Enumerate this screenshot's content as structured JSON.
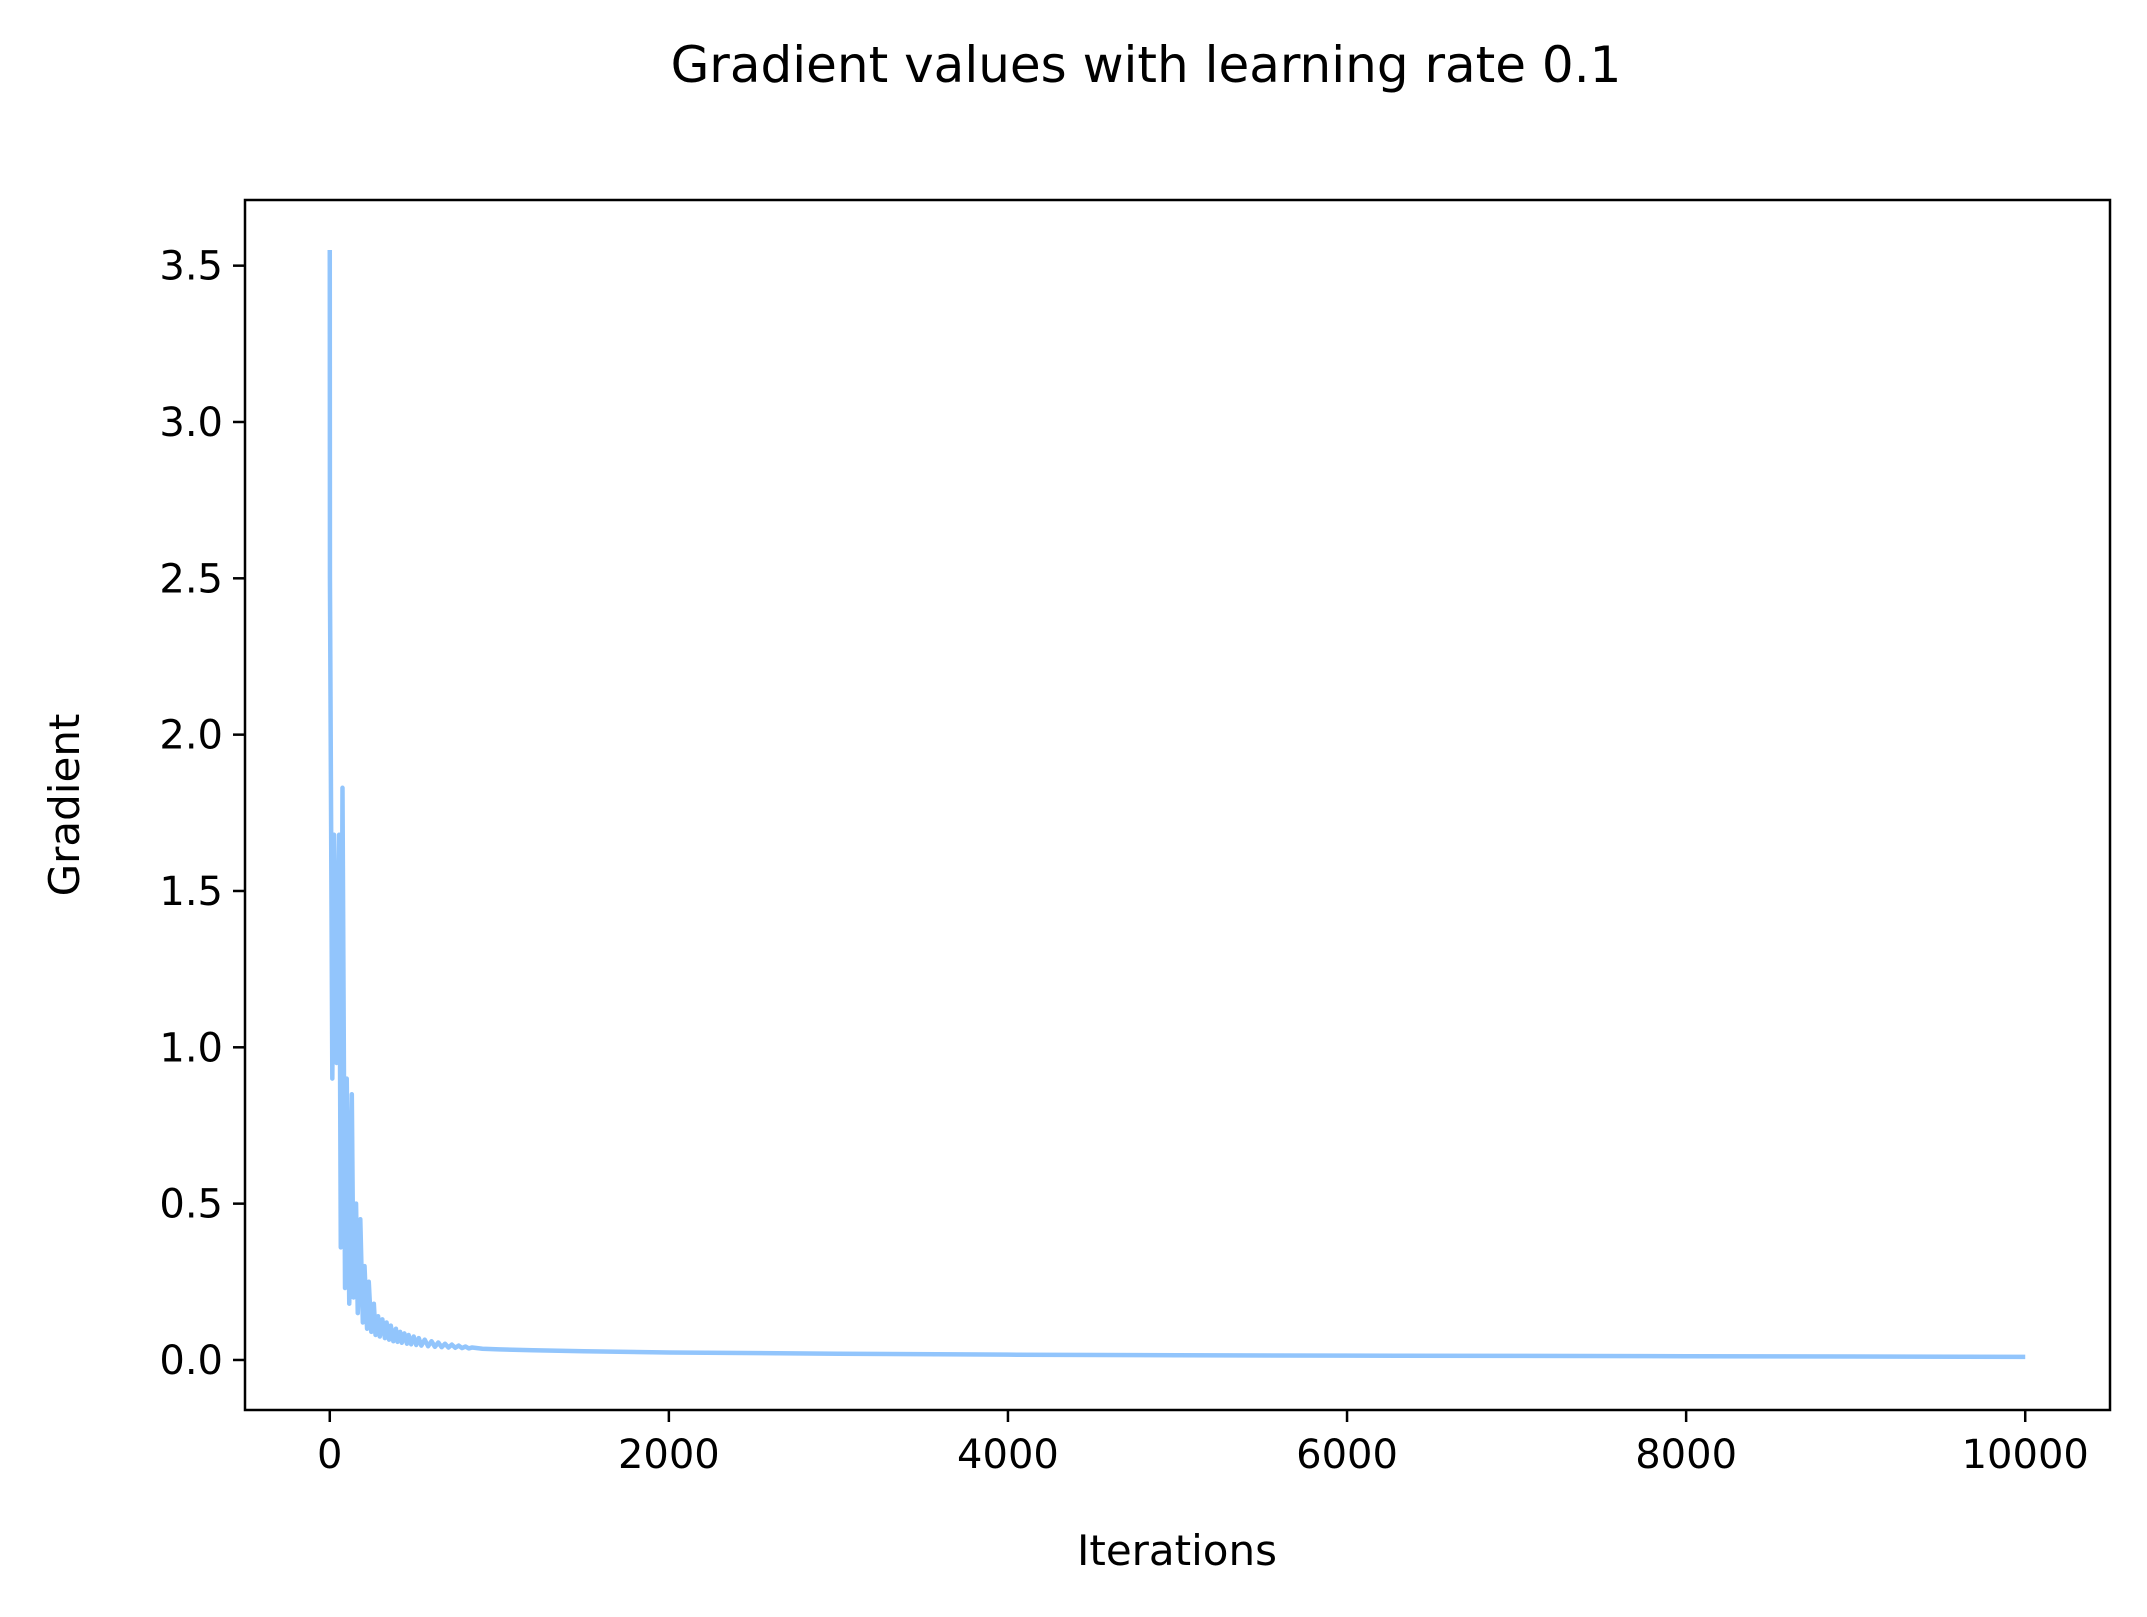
{
  "chart_data": {
    "type": "line",
    "title": "Gradient values with learning rate 0.1",
    "xlabel": "Iterations",
    "ylabel": "Gradient",
    "xlim": [
      -500,
      10500
    ],
    "ylim": [
      -0.16,
      3.71
    ],
    "xticks": [
      0,
      2000,
      4000,
      6000,
      8000,
      10000
    ],
    "xtick_labels": [
      "0",
      "2000",
      "4000",
      "6000",
      "8000",
      "10000"
    ],
    "yticks": [
      0.0,
      0.5,
      1.0,
      1.5,
      2.0,
      2.5,
      3.0,
      3.5
    ],
    "ytick_labels": [
      "0.0",
      "0.5",
      "1.0",
      "1.5",
      "2.0",
      "2.5",
      "3.0",
      "3.5"
    ],
    "grid": false,
    "legend": false,
    "series": [
      {
        "color": "#92c5fc",
        "x": [
          0,
          1,
          15,
          25,
          40,
          55,
          65,
          75,
          90,
          100,
          115,
          130,
          140,
          155,
          165,
          180,
          195,
          205,
          220,
          230,
          245,
          260,
          270,
          285,
          295,
          310,
          325,
          335,
          350,
          360,
          375,
          390,
          400,
          415,
          425,
          440,
          455,
          465,
          480,
          495,
          510,
          525,
          540,
          560,
          580,
          600,
          620,
          640,
          660,
          680,
          700,
          720,
          740,
          760,
          780,
          800,
          820,
          840,
          900,
          1000,
          1200,
          1500,
          2000,
          3000,
          4000,
          5000,
          6000,
          7000,
          8000,
          9000,
          10000
        ],
        "y": [
          3.55,
          2.5,
          0.9,
          1.68,
          0.95,
          1.68,
          0.36,
          1.83,
          0.23,
          0.9,
          0.18,
          0.85,
          0.2,
          0.5,
          0.15,
          0.45,
          0.12,
          0.3,
          0.1,
          0.25,
          0.09,
          0.18,
          0.08,
          0.14,
          0.075,
          0.13,
          0.07,
          0.12,
          0.065,
          0.11,
          0.06,
          0.1,
          0.058,
          0.09,
          0.055,
          0.085,
          0.052,
          0.08,
          0.05,
          0.075,
          0.048,
          0.07,
          0.046,
          0.065,
          0.044,
          0.06,
          0.042,
          0.056,
          0.041,
          0.052,
          0.04,
          0.049,
          0.039,
          0.046,
          0.038,
          0.043,
          0.037,
          0.04,
          0.036,
          0.034,
          0.031,
          0.028,
          0.024,
          0.02,
          0.017,
          0.015,
          0.014,
          0.013,
          0.012,
          0.011,
          0.01
        ]
      }
    ]
  }
}
